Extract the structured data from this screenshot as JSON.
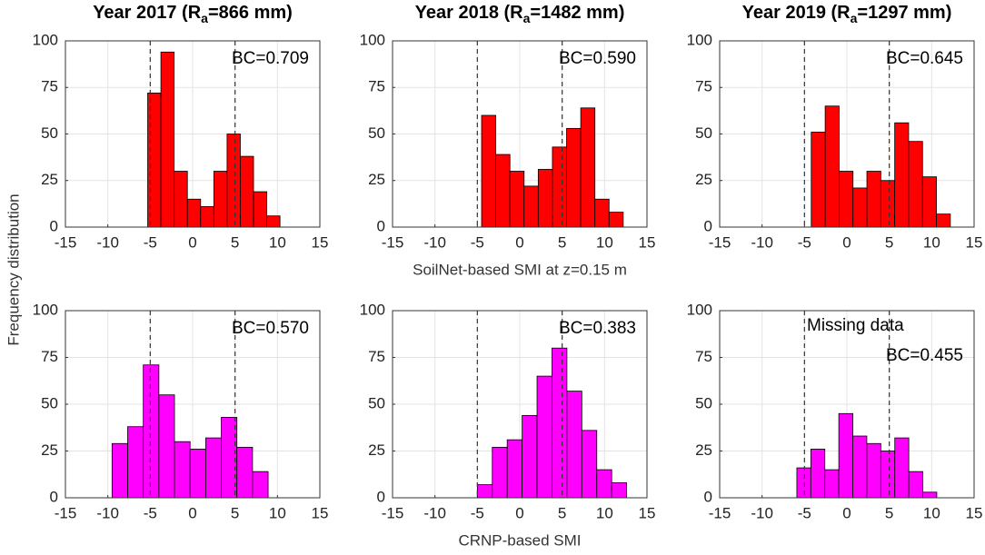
{
  "ylabel": "Frequency distribution",
  "chart_data": [
    {
      "type": "histogram",
      "title_parts": [
        "Year 2017 (R",
        "a",
        "=866 mm)"
      ],
      "annotation": "BC=0.709",
      "color": "#ff0000",
      "bins": [
        -5.3,
        -3.74,
        -2.18,
        -0.62,
        0.94,
        2.5,
        4.06,
        5.62,
        7.18,
        8.74,
        10.3
      ],
      "values": [
        72,
        94,
        30,
        15,
        11,
        30,
        50,
        38,
        19,
        6
      ],
      "vlines": [
        -5,
        5
      ],
      "xlim": [
        -15,
        15
      ],
      "xticks": [
        -15,
        -10,
        -5,
        0,
        5,
        10,
        15
      ],
      "ylim": [
        0,
        100
      ],
      "yticks": [
        0,
        25,
        50,
        75,
        100
      ],
      "grid": true
    },
    {
      "type": "histogram",
      "title_parts": [
        "Year 2018 (R",
        "a",
        "=1482 mm)"
      ],
      "annotation": "BC=0.590",
      "color": "#ff0000",
      "xlabel": "SoilNet-based SMI at z=0.15 m",
      "bins": [
        -4.5,
        -2.83,
        -1.16,
        0.51,
        2.18,
        3.85,
        5.52,
        7.19,
        8.86,
        10.53,
        12.2
      ],
      "values": [
        60,
        39,
        30,
        22,
        31,
        43,
        53,
        64,
        15,
        8
      ],
      "vlines": [
        -5,
        5
      ],
      "xlim": [
        -15,
        15
      ],
      "xticks": [
        -15,
        -10,
        -5,
        0,
        5,
        10,
        15
      ],
      "ylim": [
        0,
        100
      ],
      "yticks": [
        0,
        25,
        50,
        75,
        100
      ],
      "grid": true
    },
    {
      "type": "histogram",
      "title_parts": [
        "Year 2019 (R",
        "a",
        "=1297 mm)"
      ],
      "annotation": "BC=0.645",
      "color": "#ff0000",
      "bins": [
        -4.2,
        -2.56,
        -0.92,
        0.72,
        2.36,
        4,
        5.64,
        7.28,
        8.92,
        10.56,
        12.2
      ],
      "values": [
        51,
        65,
        30,
        21,
        30,
        25,
        56,
        46,
        27,
        7
      ],
      "vlines": [
        -5,
        5
      ],
      "xlim": [
        -15,
        15
      ],
      "xticks": [
        -15,
        -10,
        -5,
        0,
        5,
        10,
        15
      ],
      "ylim": [
        0,
        100
      ],
      "yticks": [
        0,
        25,
        50,
        75,
        100
      ],
      "grid": true
    },
    {
      "type": "histogram",
      "annotation": "BC=0.570",
      "color": "#ff00ff",
      "bins": [
        -9.5,
        -7.66,
        -5.82,
        -3.98,
        -2.14,
        -0.3,
        1.54,
        3.38,
        5.22,
        7.06,
        8.9
      ],
      "values": [
        29,
        38,
        71,
        55,
        30,
        26,
        32,
        43,
        27,
        14
      ],
      "vlines": [
        -5,
        5
      ],
      "xlim": [
        -15,
        15
      ],
      "xticks": [
        -15,
        -10,
        -5,
        0,
        5,
        10,
        15
      ],
      "ylim": [
        0,
        100
      ],
      "yticks": [
        0,
        25,
        50,
        75,
        100
      ],
      "grid": true
    },
    {
      "type": "histogram",
      "annotation": "BC=0.383",
      "color": "#ff00ff",
      "xlabel": "CRNP-based SMI",
      "bins": [
        -5,
        -3.24,
        -1.48,
        0.28,
        2.04,
        3.8,
        5.56,
        7.32,
        9.08,
        10.84,
        12.6
      ],
      "values": [
        7,
        27,
        31,
        44,
        65,
        80,
        57,
        36,
        15,
        8
      ],
      "vlines": [
        -5,
        5
      ],
      "xlim": [
        -15,
        15
      ],
      "xticks": [
        -15,
        -10,
        -5,
        0,
        5,
        10,
        15
      ],
      "ylim": [
        0,
        100
      ],
      "yticks": [
        0,
        25,
        50,
        75,
        100
      ],
      "grid": true
    },
    {
      "type": "histogram",
      "note": "Missing data",
      "annotation": "BC=0.455",
      "color": "#ff00ff",
      "bins": [
        -5.9,
        -4.25,
        -2.6,
        -0.95,
        0.7,
        2.35,
        4,
        5.65,
        7.3,
        8.95,
        10.6
      ],
      "values": [
        16,
        26,
        15,
        45,
        33,
        29,
        25,
        32,
        14,
        3
      ],
      "vlines": [
        -5,
        5
      ],
      "xlim": [
        -15,
        15
      ],
      "xticks": [
        -15,
        -10,
        -5,
        0,
        5,
        10,
        15
      ],
      "ylim": [
        0,
        100
      ],
      "yticks": [
        0,
        25,
        50,
        75,
        100
      ],
      "grid": true
    }
  ]
}
